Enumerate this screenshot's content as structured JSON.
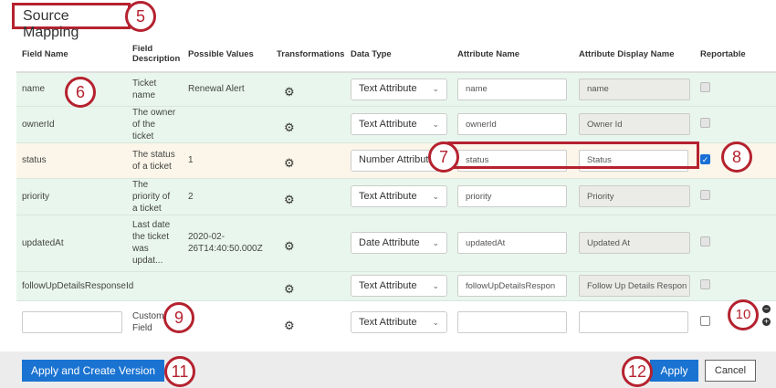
{
  "title": "Source Mapping",
  "callouts": [
    "5",
    "6",
    "7",
    "8",
    "9",
    "10",
    "11",
    "12"
  ],
  "columns": [
    "Field Name",
    "Field Description",
    "Possible Values",
    "Transformations",
    "Data Type",
    "Attribute Name",
    "Attribute Display Name",
    "Reportable"
  ],
  "rows": [
    {
      "field": "name",
      "desc": "Ticket name",
      "values": "Renewal Alert",
      "type": "Text Attribute",
      "attr": "name",
      "display": "name",
      "reportable": true,
      "disabled": true
    },
    {
      "field": "ownerId",
      "desc": "The owner of the ticket",
      "values": "",
      "type": "Text Attribute",
      "attr": "ownerId",
      "display": "Owner Id",
      "reportable": true,
      "disabled": true
    },
    {
      "field": "status",
      "desc": "The status of a ticket",
      "values": "1",
      "type": "Number Attribute",
      "attr": "status",
      "display": "Status",
      "reportable": true,
      "disabled": false
    },
    {
      "field": "priority",
      "desc": "The priority of a ticket",
      "values": "2",
      "type": "Text Attribute",
      "attr": "priority",
      "display": "Priority",
      "reportable": true,
      "disabled": true
    },
    {
      "field": "updatedAt",
      "desc": "Last date the ticket was updat...",
      "values": "2020-02-26T14:40:50.000Z",
      "type": "Date Attribute",
      "attr": "updatedAt",
      "display": "Updated At",
      "reportable": true,
      "disabled": true
    },
    {
      "field": "followUpDetailsResponseId",
      "desc": "",
      "values": "",
      "type": "Text Attribute",
      "attr": "followUpDetailsRespon",
      "display": "Follow Up Details Respon",
      "reportable": true,
      "disabled": true
    }
  ],
  "custom_row": {
    "field": "",
    "desc": "Custom Field",
    "type": "Text Attribute",
    "attr": "",
    "display": "",
    "reportable": false
  },
  "icons": {
    "transform": "gear-icon",
    "remove": "minus-circle-icon",
    "add": "plus-circle-icon"
  },
  "footer": {
    "apply_create": "Apply and Create Version",
    "apply": "Apply",
    "cancel": "Cancel"
  },
  "colors": {
    "accent": "#1a73d1",
    "callout": "#b5222f",
    "row_green": "#e9f6ed",
    "row_selected": "#fbf6e9"
  }
}
